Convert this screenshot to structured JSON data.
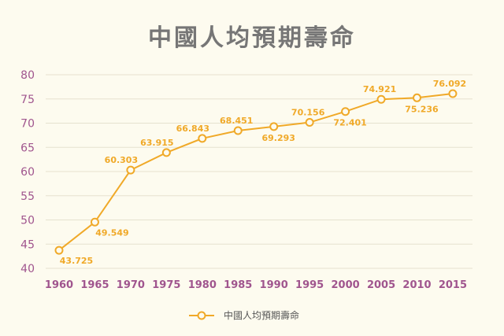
{
  "chart_data": {
    "type": "line",
    "title": "中國人均預期壽命",
    "xlabel": "",
    "ylabel": "",
    "categories": [
      "1960",
      "1965",
      "1970",
      "1975",
      "1980",
      "1985",
      "1990",
      "1995",
      "2000",
      "2005",
      "2010",
      "2015"
    ],
    "series": [
      {
        "name": "中國人均預期壽命",
        "values": [
          43.725,
          49.549,
          60.303,
          63.915,
          66.843,
          68.451,
          69.293,
          70.156,
          72.401,
          74.921,
          75.236,
          76.092
        ],
        "labels": [
          "43.725",
          "49.549",
          "60.303",
          "63.915",
          "66.843",
          "68.451",
          "69.293",
          "70.156",
          "72.401",
          "74.921",
          "75.236",
          "76.092"
        ],
        "color": "#F0A928"
      }
    ],
    "ylim": [
      40,
      80
    ],
    "yticks": [
      "40",
      "45",
      "50",
      "55",
      "60",
      "65",
      "70",
      "75",
      "80"
    ],
    "grid": "horizontal",
    "legend": "bottom",
    "colors": {
      "background": "#FDFBEF",
      "line": "#F0A928",
      "ticks": "#A0558E",
      "title": "#767676",
      "grid": "#E6E2CF"
    }
  }
}
